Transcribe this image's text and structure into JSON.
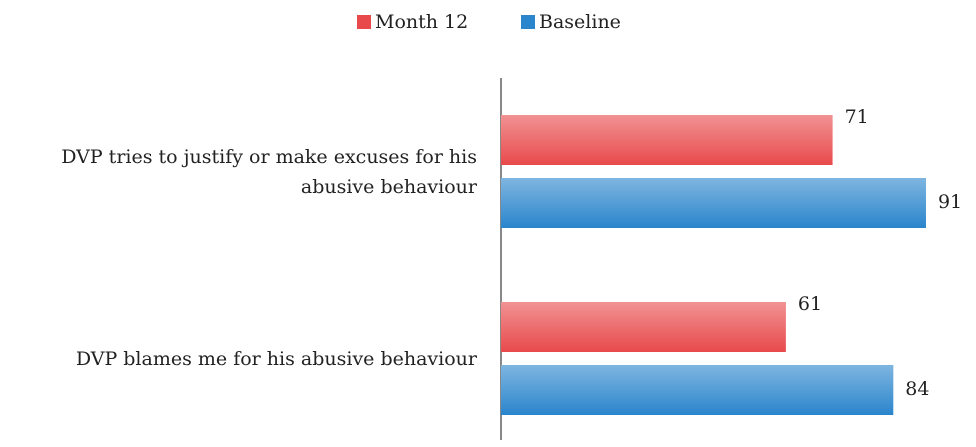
{
  "chart_data": {
    "type": "hbar",
    "categories": [
      "DVP tries to justify or make excuses for his abusive behaviour",
      "DVP blames me for his abusive behaviour"
    ],
    "series": [
      {
        "name": "Month 12",
        "color": "#e84a4c",
        "values": [
          71,
          61
        ]
      },
      {
        "name": "Baseline",
        "color": "#2a85cc",
        "values": [
          91,
          84
        ]
      }
    ],
    "xlim": [
      0,
      100
    ],
    "legend": "top"
  }
}
